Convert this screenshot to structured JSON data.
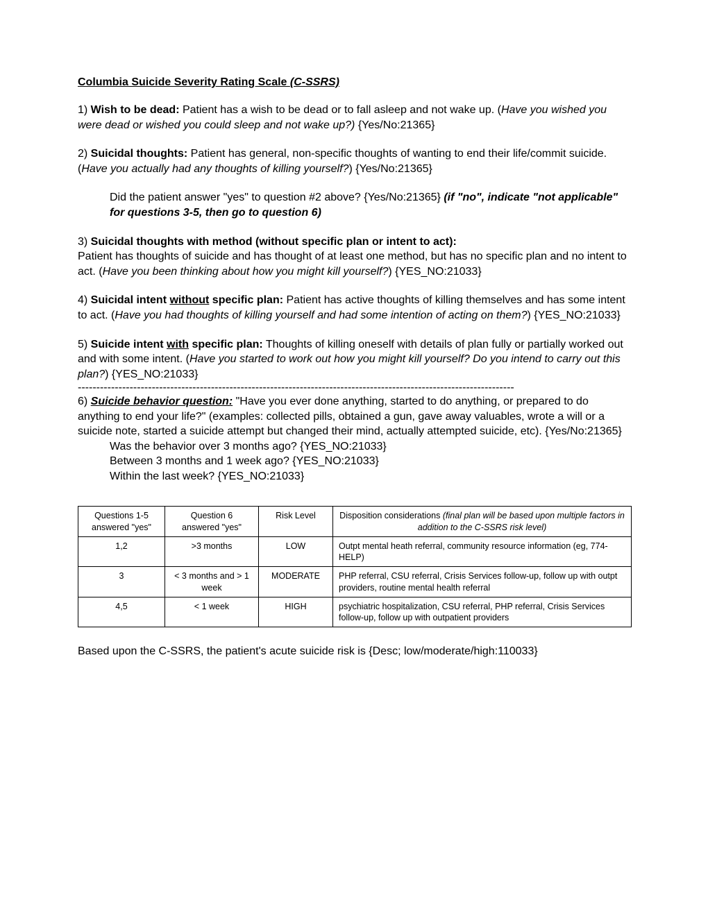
{
  "title_plain": "Columbia Suicide Severity Rating Scale ",
  "title_ital": "(C-SSRS)",
  "q1_num": "1) ",
  "q1_label": "Wish to be dead:",
  "q1_desc": " Patient has a wish to be dead or to fall asleep and not wake up. (",
  "q1_prompt": "Have you wished you were dead or wished you could sleep and not wake up?)",
  "q1_field": " {Yes/No:21365}",
  "q2_num": "2) ",
  "q2_label": "Suicidal thoughts:",
  "q2_desc": " Patient has general, non-specific thoughts of wanting to end their life/commit suicide. (",
  "q2_prompt": "Have you actually had any thoughts of killing yourself?",
  "q2_close": ") {Yes/No:21365}",
  "q2_follow_a": "Did the patient answer \"yes\" to question #2 above? {Yes/No:21365} ",
  "q2_follow_bi": "(if \"no\", indicate \"not applicable\" for questions 3-5, then go to question 6)",
  "q3_num": "3) ",
  "q3_label": "Suicidal thoughts with method (without specific plan or intent to act):",
  "q3_desc": "Patient has thoughts of suicide and has thought of at least one method, but has no specific plan and no intent to act. (",
  "q3_prompt": "Have you been thinking about how you might kill yourself?",
  "q3_close": ") {YES_NO:21033}",
  "q4_num": "4) ",
  "q4_label_a": "Suicidal intent ",
  "q4_label_u": "without",
  "q4_label_b": " specific plan:",
  "q4_desc": " Patient has active thoughts of killing themselves and has some intent to act. (",
  "q4_prompt": "Have you had thoughts of killing yourself and had some intention of acting on them?",
  "q4_close": ") {YES_NO:21033}",
  "q5_num": "5) ",
  "q5_label_a": "Suicide intent ",
  "q5_label_u": "with",
  "q5_label_b": " specific plan:",
  "q5_desc": " Thoughts of killing oneself with details of plan fully or partially worked out and with some intent. (",
  "q5_prompt": "Have you started to work out how you might kill yourself? Do you intend to carry out this plan?",
  "q5_close": ")  {YES_NO:21033}",
  "dashes": "----------------------------------------------------------------------------------------------------------------------",
  "q6_num": "6) ",
  "q6_label": "Suicide behavior question:",
  "q6_desc": " \"Have you ever done anything, started to do anything, or prepared to do anything to end your life?\" (examples: collected pills, obtained a gun, gave away valuables, wrote a will or a suicide note, started a suicide attempt but changed their mind, actually attempted suicide, etc). {Yes/No:21365}",
  "q6_s1": "Was the behavior over 3 months ago? {YES_NO:21033}",
  "q6_s2": "Between 3 months and 1 week ago? {YES_NO:21033}",
  "q6_s3": "Within the last week? {YES_NO:21033}",
  "table": {
    "h1": "Questions 1-5 answered \"yes\"",
    "h2": "Question 6 answered \"yes\"",
    "h3": "Risk Level",
    "h4a": "Disposition considerations ",
    "h4b": "(final plan will be based upon multiple factors in addition to the C-SSRS risk level)",
    "rows": [
      {
        "c1": "1,2",
        "c2": ">3 months",
        "c3": "LOW",
        "c4": "Outpt mental heath referral, community resource information (eg, 774-HELP)"
      },
      {
        "c1": "3",
        "c2": "< 3 months and > 1 week",
        "c3": "MODERATE",
        "c4": "PHP referral, CSU referral, Crisis Services follow-up, follow up with outpt providers, routine mental health referral"
      },
      {
        "c1": "4,5",
        "c2": "< 1 week",
        "c3": "HIGH",
        "c4": "psychiatric hospitalization, CSU referral, PHP referral, Crisis Services follow-up, follow up with outpatient providers"
      }
    ]
  },
  "footer": "Based upon the C-SSRS, the patient's acute suicide risk is {Desc; low/moderate/high:110033}"
}
